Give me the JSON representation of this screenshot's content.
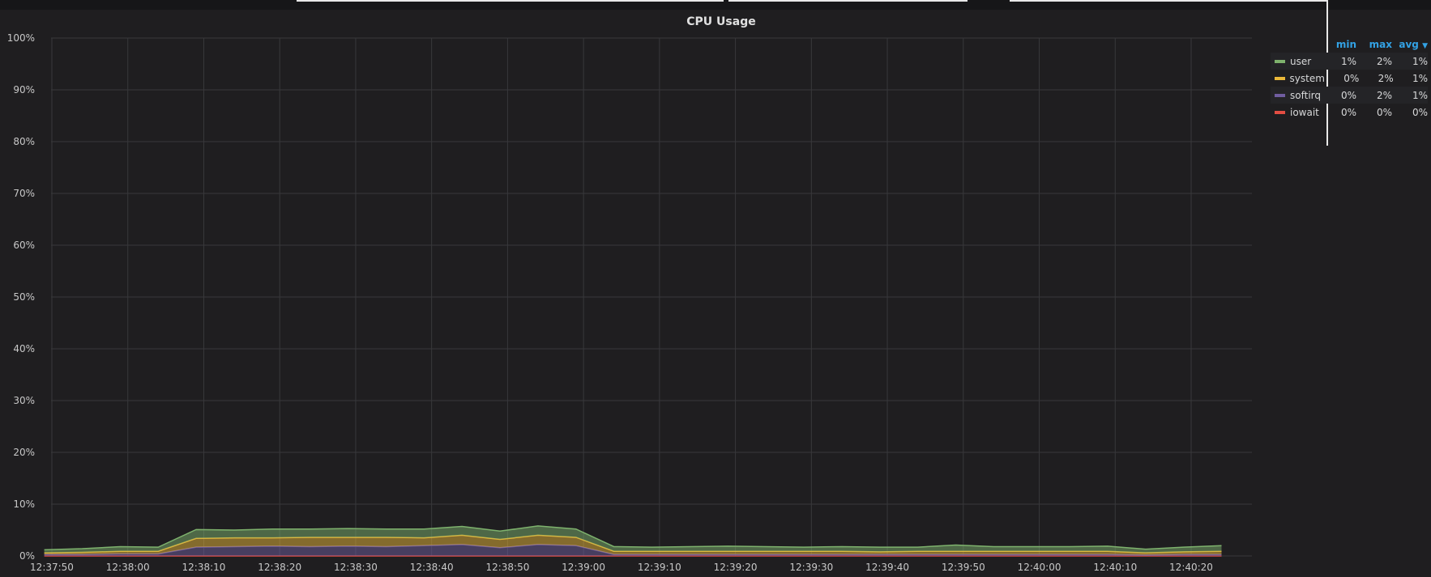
{
  "panel": {
    "title": "CPU Usage"
  },
  "legend": {
    "headers": {
      "min": "min",
      "max": "max",
      "avg": "avg",
      "sort_icon": "caret-down-icon"
    },
    "rows": [
      {
        "name": "user",
        "color": "#7eb26d",
        "min": "1%",
        "max": "2%",
        "avg": "1%"
      },
      {
        "name": "system",
        "color": "#eab839",
        "min": "0%",
        "max": "2%",
        "avg": "1%"
      },
      {
        "name": "softirq",
        "color": "#705da0",
        "min": "0%",
        "max": "2%",
        "avg": "1%"
      },
      {
        "name": "iowait",
        "color": "#e24d42",
        "min": "0%",
        "max": "0%",
        "avg": "0%"
      }
    ]
  },
  "chart_data": {
    "type": "area",
    "stacked": true,
    "title": "CPU Usage",
    "ylim": [
      0,
      100
    ],
    "yticks": [
      "0%",
      "10%",
      "20%",
      "30%",
      "40%",
      "50%",
      "60%",
      "70%",
      "80%",
      "90%",
      "100%"
    ],
    "xticks": [
      "12:37:50",
      "12:38:00",
      "12:38:10",
      "12:38:20",
      "12:38:30",
      "12:38:40",
      "12:38:50",
      "12:39:00",
      "12:39:10",
      "12:39:20",
      "12:39:30",
      "12:39:40",
      "12:39:50",
      "12:40:00",
      "12:40:10",
      "12:40:20"
    ],
    "grid": true,
    "legend_placement": "right",
    "x": [
      "12:37:49",
      "12:37:54",
      "12:37:59",
      "12:38:04",
      "12:38:09",
      "12:38:14",
      "12:38:19",
      "12:38:24",
      "12:38:29",
      "12:38:34",
      "12:38:39",
      "12:38:44",
      "12:38:49",
      "12:38:54",
      "12:38:59",
      "12:39:04",
      "12:39:09",
      "12:39:14",
      "12:39:19",
      "12:39:24",
      "12:39:29",
      "12:39:34",
      "12:39:39",
      "12:39:44",
      "12:39:49",
      "12:39:54",
      "12:39:59",
      "12:40:04",
      "12:40:09",
      "12:40:14",
      "12:40:19",
      "12:40:24"
    ],
    "series": [
      {
        "name": "iowait",
        "color": "#e24d42",
        "values": [
          0,
          0,
          0,
          0,
          0,
          0,
          0,
          0,
          0,
          0,
          0,
          0,
          0,
          0,
          0,
          0,
          0,
          0,
          0,
          0,
          0,
          0,
          0,
          0,
          0,
          0,
          0,
          0,
          0,
          0,
          0,
          0
        ]
      },
      {
        "name": "softirq",
        "color": "#705da0",
        "values": [
          0.3,
          0.3,
          0.4,
          0.4,
          1.7,
          1.8,
          1.9,
          1.8,
          1.9,
          1.8,
          2.0,
          2.2,
          1.6,
          2.2,
          2.0,
          0.3,
          0.3,
          0.3,
          0.3,
          0.3,
          0.3,
          0.3,
          0.3,
          0.3,
          0.3,
          0.3,
          0.3,
          0.3,
          0.3,
          0.2,
          0.3,
          0.3
        ]
      },
      {
        "name": "system",
        "color": "#eab839",
        "values": [
          0.3,
          0.4,
          0.5,
          0.5,
          1.7,
          1.7,
          1.6,
          1.8,
          1.7,
          1.8,
          1.5,
          1.8,
          1.6,
          1.8,
          1.6,
          0.6,
          0.6,
          0.6,
          0.6,
          0.6,
          0.6,
          0.6,
          0.5,
          0.6,
          0.6,
          0.6,
          0.6,
          0.6,
          0.6,
          0.4,
          0.5,
          0.6
        ]
      },
      {
        "name": "user",
        "color": "#7eb26d",
        "values": [
          0.6,
          0.7,
          0.9,
          0.8,
          1.7,
          1.5,
          1.7,
          1.6,
          1.7,
          1.6,
          1.7,
          1.7,
          1.6,
          1.8,
          1.6,
          0.9,
          0.8,
          0.9,
          1.0,
          0.9,
          0.8,
          0.9,
          0.9,
          0.8,
          1.2,
          0.9,
          0.9,
          0.9,
          1.0,
          0.7,
          0.9,
          1.1
        ]
      }
    ]
  }
}
